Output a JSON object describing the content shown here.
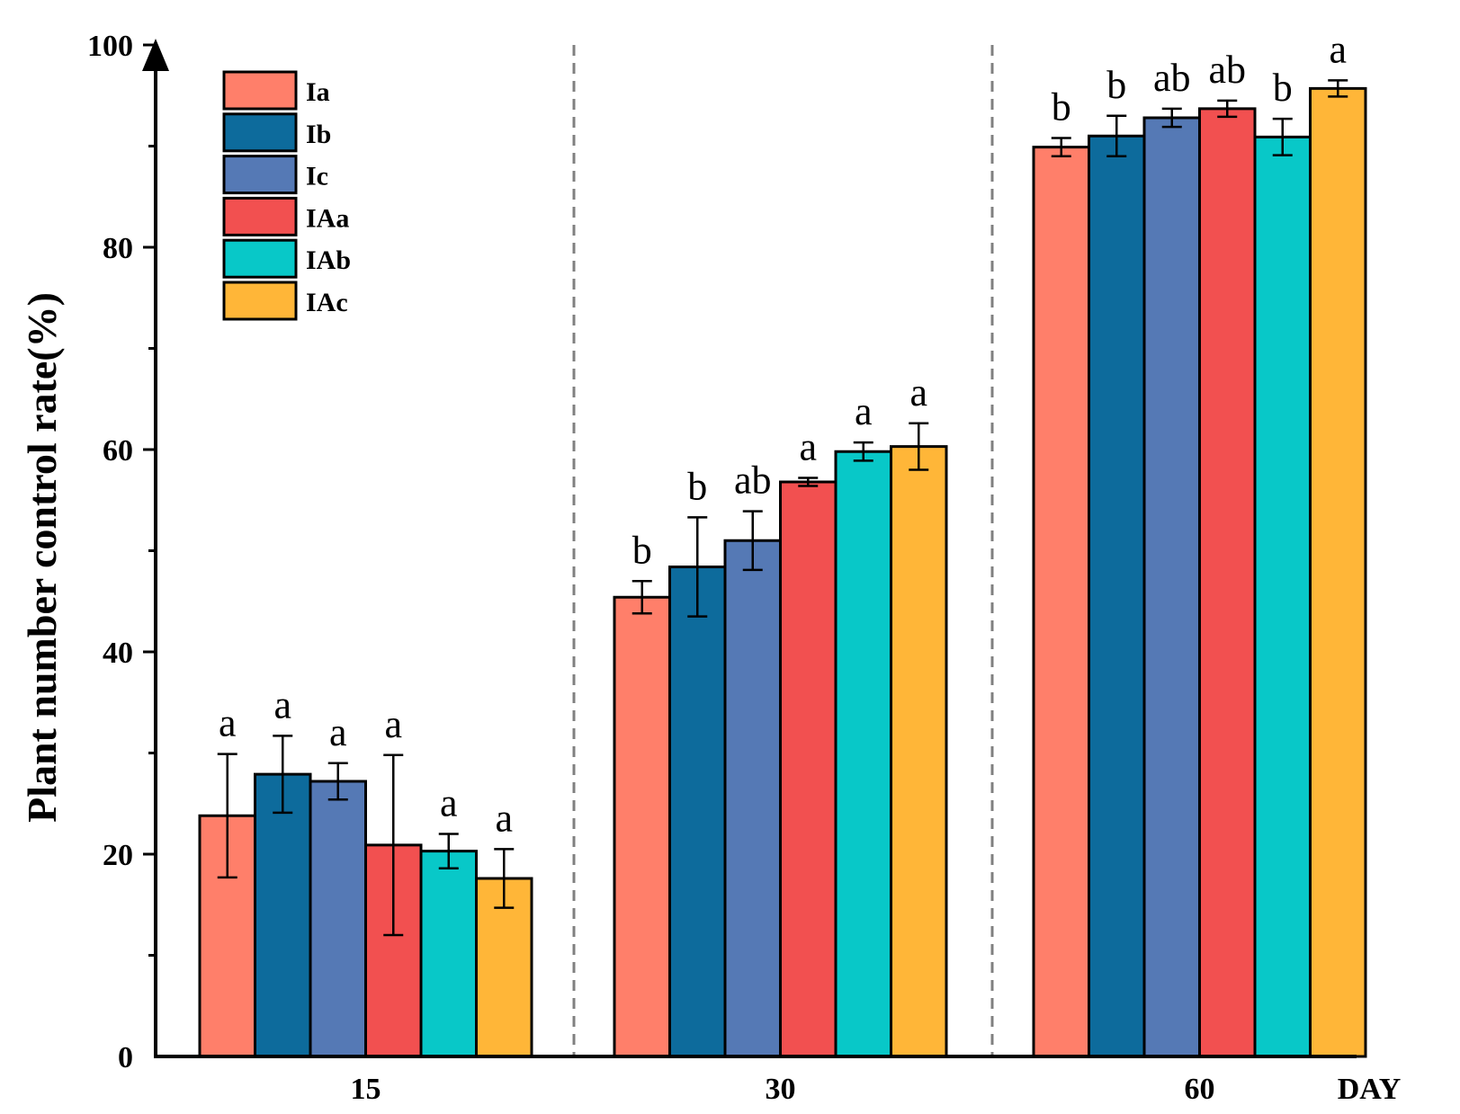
{
  "chart_data": {
    "type": "bar",
    "ylabel": "Plant number control rate(%)",
    "xlabel": "DAY",
    "ylim": [
      0,
      100
    ],
    "yticks": [
      0,
      20,
      40,
      60,
      80,
      100
    ],
    "categories": [
      "15",
      "30",
      "60"
    ],
    "legend_position": "top-left",
    "series": [
      {
        "name": "Ia",
        "color": "#FF7F6A",
        "values": [
          23.8,
          45.4,
          89.9
        ],
        "errors": [
          6.1,
          1.6,
          0.9
        ],
        "sig": [
          "a",
          "b",
          "b"
        ]
      },
      {
        "name": "Ib",
        "color": "#0D6B9C",
        "values": [
          27.9,
          48.4,
          91.0
        ],
        "errors": [
          3.8,
          4.9,
          2.0
        ],
        "sig": [
          "a",
          "b",
          "b"
        ]
      },
      {
        "name": "Ic",
        "color": "#5579B5",
        "values": [
          27.2,
          51.0,
          92.8
        ],
        "errors": [
          1.8,
          2.9,
          0.9
        ],
        "sig": [
          "a",
          "ab",
          "ab"
        ]
      },
      {
        "name": "IAa",
        "color": "#F25050",
        "values": [
          20.9,
          56.8,
          93.7
        ],
        "errors": [
          8.9,
          0.4,
          0.8
        ],
        "sig": [
          "a",
          "a",
          "ab"
        ]
      },
      {
        "name": "IAb",
        "color": "#08C8C8",
        "values": [
          20.3,
          59.8,
          90.9
        ],
        "errors": [
          1.7,
          0.9,
          1.8
        ],
        "sig": [
          "a",
          "a",
          "b"
        ]
      },
      {
        "name": "IAc",
        "color": "#FFB638",
        "values": [
          17.6,
          60.3,
          95.7
        ],
        "errors": [
          2.9,
          2.3,
          0.8
        ],
        "sig": [
          "a",
          "a",
          "a"
        ]
      }
    ]
  }
}
